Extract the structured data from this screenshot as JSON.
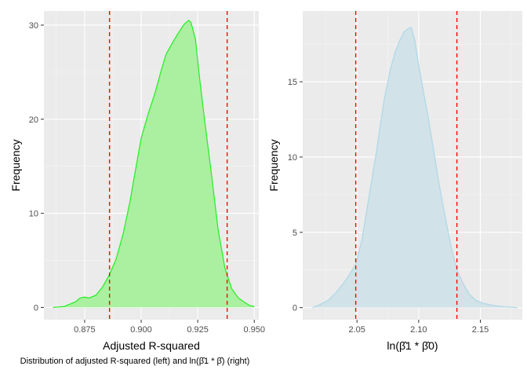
{
  "caption": "Distribution of adjusted R-squared (left) and ln(β̂1 * β̂) (right)",
  "chart_data": [
    {
      "type": "area",
      "xlabel": "Adjusted R-squared",
      "ylabel": "Frequency",
      "xlim": [
        0.857,
        0.952
      ],
      "ylim": [
        -1.3,
        31.5
      ],
      "x_major_ticks": [
        0.875,
        0.9,
        0.925,
        0.95
      ],
      "x_tick_labels": [
        "0.875",
        "0.900",
        "0.925",
        "0.950"
      ],
      "y_major_ticks": [
        0,
        10,
        20,
        30
      ],
      "y_tick_labels": [
        "0",
        "10",
        "20",
        "30"
      ],
      "fill_color": "#aaf0a0",
      "line_color": "#22ee22",
      "vlines": [
        0.886,
        0.938
      ],
      "vline_color": "#ff0000",
      "x": [
        0.861,
        0.866,
        0.868,
        0.871,
        0.873,
        0.875,
        0.877,
        0.88,
        0.883,
        0.886,
        0.889,
        0.892,
        0.895,
        0.898,
        0.9,
        0.903,
        0.906,
        0.909,
        0.911,
        0.914,
        0.916,
        0.919,
        0.921,
        0.922,
        0.924,
        0.926,
        0.928,
        0.931,
        0.934,
        0.937,
        0.94,
        0.943,
        0.946,
        0.948,
        0.95
      ],
      "y": [
        0.0,
        0.1,
        0.3,
        0.6,
        1.0,
        1.1,
        1.0,
        1.3,
        2.2,
        3.5,
        5.2,
        7.8,
        11.2,
        15.3,
        18.0,
        20.5,
        22.7,
        25.3,
        26.9,
        28.2,
        29.0,
        30.1,
        30.5,
        30.3,
        28.5,
        24.0,
        20.0,
        14.3,
        8.3,
        4.2,
        2.0,
        1.0,
        0.5,
        0.2,
        0.1
      ]
    },
    {
      "type": "area",
      "xlabel": "ln(β̂1 * β̂0)",
      "ylabel": "Frequency",
      "xlim": [
        2.006,
        2.184
      ],
      "ylim": [
        -0.8,
        19.7
      ],
      "x_major_ticks": [
        2.05,
        2.1,
        2.15
      ],
      "x_tick_labels": [
        "2.05",
        "2.10",
        "2.15"
      ],
      "y_major_ticks": [
        0,
        5,
        10,
        15
      ],
      "y_tick_labels": [
        "0",
        "5",
        "10",
        "15"
      ],
      "fill_color": "#d1e2e8",
      "line_color": "#add8e6",
      "vlines": [
        2.049,
        2.131
      ],
      "vline_color": "#ff0000",
      "x": [
        2.014,
        2.02,
        2.027,
        2.033,
        2.039,
        2.044,
        2.049,
        2.054,
        2.06,
        2.066,
        2.072,
        2.077,
        2.081,
        2.085,
        2.088,
        2.091,
        2.094,
        2.097,
        2.1,
        2.104,
        2.108,
        2.112,
        2.117,
        2.122,
        2.127,
        2.131,
        2.136,
        2.141,
        2.146,
        2.152,
        2.16,
        2.17,
        2.18
      ],
      "y": [
        0.0,
        0.2,
        0.5,
        1.0,
        1.6,
        2.2,
        2.9,
        4.5,
        7.5,
        10.5,
        13.8,
        15.8,
        17.0,
        17.8,
        18.3,
        18.5,
        18.6,
        17.7,
        16.1,
        14.3,
        12.5,
        10.5,
        8.0,
        5.8,
        3.8,
        2.5,
        1.6,
        0.9,
        0.5,
        0.3,
        0.15,
        0.05,
        0.0
      ]
    }
  ]
}
